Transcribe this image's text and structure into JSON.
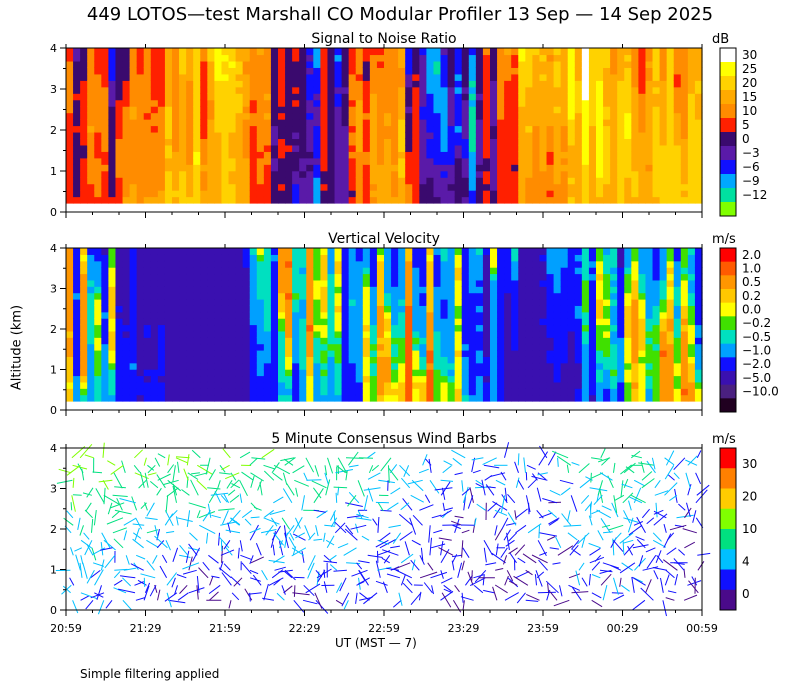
{
  "title": "449 LOTOS—test Marshall CO Modular Profiler 13 Sep — 14 Sep 2025",
  "footer": "Simple filtering applied",
  "xlabel": "UT  (MST — 7)",
  "ylabel": "Altitude (km)",
  "chart_data": [
    {
      "type": "heatmap",
      "title": "Signal to Noise Ratio",
      "units": "dB",
      "xticks": [
        "20:59",
        "21:29",
        "21:59",
        "22:29",
        "22:59",
        "23:29",
        "23:59",
        "00:29",
        "00:59"
      ],
      "yticks": [
        "0",
        "1",
        "2",
        "3",
        "4"
      ],
      "ylim": [
        0,
        4
      ],
      "colorbar": {
        "labels": [
          "30",
          "25",
          "20",
          "15",
          "10",
          "5",
          "0",
          "−3",
          "−6",
          "−9",
          "−12"
        ],
        "colors": [
          "#ffffff",
          "#ffff00",
          "#ffd200",
          "#ffaa00",
          "#ff8c00",
          "#ff2000",
          "#3a0a6e",
          "#5a1aa8",
          "#1010ff",
          "#00a8ff",
          "#00e0a0",
          "#80ff00"
        ]
      },
      "profile_by_time": [
        {
          "time": "20:59",
          "snr": 8
        },
        {
          "time": "21:14",
          "snr": 2
        },
        {
          "time": "21:29",
          "snr": 14
        },
        {
          "time": "21:44",
          "snr": 20
        },
        {
          "time": "21:59",
          "snr": 24
        },
        {
          "time": "22:14",
          "snr": 12
        },
        {
          "time": "22:29",
          "snr": 0
        },
        {
          "time": "22:44",
          "snr": -2
        },
        {
          "time": "22:59",
          "snr": 18
        },
        {
          "time": "23:14",
          "snr": 4
        },
        {
          "time": "23:29",
          "snr": -4
        },
        {
          "time": "23:44",
          "snr": 10
        },
        {
          "time": "23:59",
          "snr": 16
        },
        {
          "time": "00:14",
          "snr": 22
        },
        {
          "time": "00:29",
          "snr": 14
        },
        {
          "time": "00:44",
          "snr": 12
        },
        {
          "time": "00:59",
          "snr": 18
        }
      ]
    },
    {
      "type": "heatmap",
      "title": "Vertical Velocity",
      "units": "m/s",
      "xticks": [
        "20:59",
        "21:29",
        "21:59",
        "22:29",
        "22:59",
        "23:29",
        "23:59",
        "00:29",
        "00:59"
      ],
      "yticks": [
        "0",
        "1",
        "2",
        "3",
        "4"
      ],
      "ylim": [
        0,
        4
      ],
      "colorbar": {
        "labels": [
          "2.0",
          "1.0",
          "0.5",
          "0.2",
          "0.0",
          "−0.2",
          "−0.5",
          "−1.0",
          "−2.0",
          "−5.0",
          "−10.0"
        ],
        "colors": [
          "#ff0000",
          "#ff5a00",
          "#ff9600",
          "#ffc800",
          "#ffff00",
          "#40e000",
          "#00e0c0",
          "#00a0ff",
          "#1010ff",
          "#3a10b0",
          "#4a2080",
          "#200020"
        ]
      },
      "profile_by_time": [
        {
          "time": "20:59",
          "w": -0.4
        },
        {
          "time": "21:14",
          "w": -1.5
        },
        {
          "time": "21:29",
          "w": -2.5
        },
        {
          "time": "21:44",
          "w": -3.0
        },
        {
          "time": "21:59",
          "w": -3.5
        },
        {
          "time": "22:14",
          "w": -0.6
        },
        {
          "time": "22:29",
          "w": 0.1
        },
        {
          "time": "22:44",
          "w": -1.2
        },
        {
          "time": "22:59",
          "w": -0.3
        },
        {
          "time": "23:14",
          "w": 0.3
        },
        {
          "time": "23:29",
          "w": -0.1
        },
        {
          "time": "23:44",
          "w": -1.5
        },
        {
          "time": "23:59",
          "w": -2.5
        },
        {
          "time": "00:14",
          "w": -1.5
        },
        {
          "time": "00:29",
          "w": -1.0
        },
        {
          "time": "00:44",
          "w": -0.4
        },
        {
          "time": "00:59",
          "w": 0.3
        }
      ]
    },
    {
      "type": "scatter",
      "title": "5 Minute Consensus Wind Barbs",
      "units": "m/s",
      "xticks": [
        "20:59",
        "21:29",
        "21:59",
        "22:29",
        "22:59",
        "23:29",
        "23:59",
        "00:29",
        "00:59"
      ],
      "yticks": [
        "0",
        "1",
        "2",
        "3",
        "4"
      ],
      "ylim": [
        0,
        4
      ],
      "colorbar": {
        "labels": [
          "30",
          "20",
          "10",
          "4",
          "0"
        ],
        "colors": [
          "#ff0000",
          "#ff8000",
          "#ffcc00",
          "#80ff00",
          "#00e080",
          "#00c0ff",
          "#1010ff",
          "#4a0a8a"
        ]
      },
      "speed_by_time": [
        {
          "time": "20:59",
          "low_ms": 4,
          "high_ms": 11
        },
        {
          "time": "21:29",
          "low_ms": 3,
          "high_ms": 10
        },
        {
          "time": "21:59",
          "low_ms": 2,
          "high_ms": 9
        },
        {
          "time": "22:29",
          "low_ms": 3,
          "high_ms": 8
        },
        {
          "time": "22:59",
          "low_ms": 3,
          "high_ms": 6
        },
        {
          "time": "23:29",
          "low_ms": 2,
          "high_ms": 4
        },
        {
          "time": "23:59",
          "low_ms": 2,
          "high_ms": 4
        },
        {
          "time": "00:29",
          "low_ms": 3,
          "high_ms": 9
        },
        {
          "time": "00:59",
          "low_ms": 2,
          "high_ms": 3
        }
      ]
    }
  ]
}
